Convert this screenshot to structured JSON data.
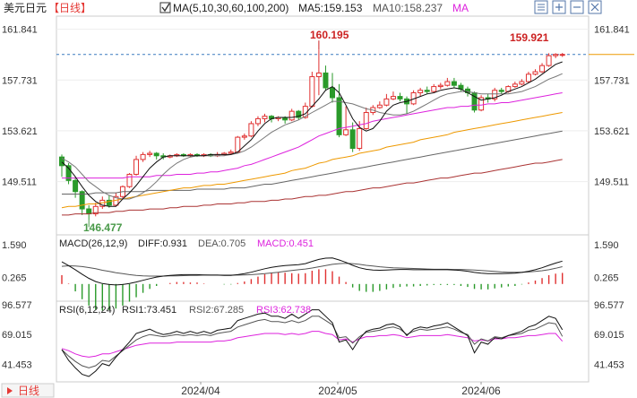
{
  "header": {
    "symbol": "美元日元",
    "period": "【日线】",
    "ma_label": "MA(5,10,30,60,100,200)",
    "ma5": "MA5:159.153",
    "ma10": "MA10:158.237",
    "ma_extra": "MA"
  },
  "toolbar": {
    "icons": [
      "grid-icon",
      "zoom-in-icon",
      "zoom-out-icon",
      "settings-icon"
    ]
  },
  "price_axis": {
    "ticks": [
      "161.841",
      "157.731",
      "153.621",
      "149.511"
    ]
  },
  "annotations": {
    "high1": "160.195",
    "high2": "159.921",
    "low": "146.477"
  },
  "macd": {
    "label": "MACD(26,12,9)",
    "diff": "DIFF:0.931",
    "dea": "DEA:0.705",
    "macd": "MACD:0.451",
    "ticks": [
      "1.590",
      "0.265"
    ]
  },
  "rsi": {
    "label": "RSI(6,12,24)",
    "rsi1": "RSI1:73.451",
    "rsi2": "RSI2:67.285",
    "rsi3": "RSI3:62.738",
    "ticks": [
      "96.577",
      "69.015",
      "41.453"
    ]
  },
  "xaxis": {
    "labels": [
      "2024/04",
      "2024/05",
      "2024/06"
    ],
    "period_button": "日线"
  },
  "colors": {
    "up": "#e03030",
    "down": "#2a9a2a",
    "ma5": "#111111",
    "ma10": "#777777",
    "ma30": "#dd22dd",
    "ma60": "#ee9900",
    "ma100": "#666666",
    "ma200": "#aa3333",
    "label_red": "#cc2222",
    "label_green": "#4a9a4a"
  },
  "chart_data": {
    "type": "candlestick",
    "title": "美元日元【日线】",
    "ylim": [
      145.2,
      162.9
    ],
    "xlabels": [
      "2024/04",
      "2024/05",
      "2024/06"
    ],
    "candles": [
      [
        151.5,
        150.8,
        151.7,
        149.9
      ],
      [
        150.8,
        149.6,
        151.0,
        149.3
      ],
      [
        149.6,
        148.7,
        149.9,
        148.2
      ],
      [
        148.7,
        147.3,
        148.8,
        146.8
      ],
      [
        147.3,
        146.9,
        147.6,
        146.4
      ],
      [
        146.9,
        147.5,
        147.8,
        146.7
      ],
      [
        147.5,
        148.0,
        148.3,
        147.3
      ],
      [
        148.0,
        147.6,
        148.4,
        147.4
      ],
      [
        147.6,
        148.3,
        148.6,
        147.5
      ],
      [
        148.3,
        149.1,
        149.2,
        148.1
      ],
      [
        149.1,
        150.1,
        150.2,
        149.0
      ],
      [
        150.1,
        151.3,
        151.6,
        150.0
      ],
      [
        151.3,
        151.7,
        151.9,
        151.1
      ],
      [
        151.7,
        151.8,
        152.0,
        151.5
      ],
      [
        151.8,
        151.6,
        151.9,
        151.3
      ],
      [
        151.6,
        151.5,
        151.8,
        151.3
      ],
      [
        151.5,
        151.6,
        151.7,
        151.4
      ],
      [
        151.6,
        151.7,
        151.8,
        151.5
      ],
      [
        151.7,
        151.6,
        151.8,
        151.5
      ],
      [
        151.6,
        151.7,
        151.8,
        151.5
      ],
      [
        151.7,
        151.6,
        151.8,
        151.5
      ],
      [
        151.6,
        151.7,
        151.8,
        151.5
      ],
      [
        151.7,
        151.6,
        151.8,
        151.5
      ],
      [
        151.6,
        151.7,
        151.9,
        151.5
      ],
      [
        151.7,
        151.8,
        151.9,
        151.6
      ],
      [
        151.8,
        151.9,
        152.1,
        151.7
      ],
      [
        151.9,
        153.1,
        153.2,
        151.8
      ],
      [
        153.1,
        153.2,
        153.4,
        152.9
      ],
      [
        153.2,
        154.2,
        154.4,
        153.1
      ],
      [
        154.2,
        154.6,
        154.8,
        154.0
      ],
      [
        154.6,
        154.8,
        155.0,
        154.3
      ],
      [
        154.8,
        154.6,
        154.9,
        154.3
      ],
      [
        154.6,
        154.7,
        154.8,
        154.4
      ],
      [
        154.7,
        154.5,
        154.8,
        154.2
      ],
      [
        154.5,
        155.2,
        155.4,
        154.4
      ],
      [
        155.2,
        154.7,
        155.3,
        154.5
      ],
      [
        154.7,
        155.6,
        155.9,
        154.6
      ],
      [
        155.6,
        158.0,
        158.4,
        155.5
      ],
      [
        158.0,
        158.3,
        160.2,
        156.5
      ],
      [
        158.3,
        157.1,
        158.9,
        156.9
      ],
      [
        157.1,
        156.3,
        158.3,
        155.9
      ],
      [
        156.3,
        153.3,
        157.4,
        153.1
      ],
      [
        153.3,
        153.7,
        155.6,
        153.2
      ],
      [
        153.7,
        152.2,
        154.3,
        151.9
      ],
      [
        152.2,
        153.8,
        154.4,
        152.0
      ],
      [
        153.8,
        155.1,
        155.5,
        153.7
      ],
      [
        155.1,
        155.5,
        155.7,
        154.9
      ],
      [
        155.5,
        155.7,
        156.0,
        155.4
      ],
      [
        155.7,
        156.2,
        156.6,
        155.6
      ],
      [
        156.2,
        156.4,
        156.8,
        156.1
      ],
      [
        156.4,
        156.2,
        156.7,
        156.0
      ],
      [
        156.2,
        155.8,
        156.4,
        155.0
      ],
      [
        155.8,
        156.7,
        156.9,
        155.7
      ],
      [
        156.7,
        156.9,
        157.1,
        156.4
      ],
      [
        156.9,
        156.8,
        157.2,
        156.6
      ],
      [
        156.8,
        157.2,
        157.4,
        156.7
      ],
      [
        157.2,
        157.3,
        157.5,
        157.0
      ],
      [
        157.3,
        157.6,
        157.9,
        157.2
      ],
      [
        157.6,
        157.3,
        157.9,
        157.1
      ],
      [
        157.3,
        157.0,
        157.5,
        156.8
      ],
      [
        157.0,
        156.7,
        157.2,
        156.4
      ],
      [
        156.7,
        155.3,
        156.8,
        155.1
      ],
      [
        155.3,
        156.3,
        156.5,
        155.2
      ],
      [
        156.3,
        156.2,
        156.6,
        155.9
      ],
      [
        156.2,
        156.9,
        157.1,
        156.0
      ],
      [
        156.9,
        156.8,
        157.1,
        156.6
      ],
      [
        156.8,
        157.2,
        157.3,
        156.7
      ],
      [
        157.2,
        157.4,
        157.6,
        157.1
      ],
      [
        157.4,
        157.6,
        157.8,
        157.3
      ],
      [
        157.6,
        158.2,
        158.4,
        157.5
      ],
      [
        158.2,
        158.4,
        158.6,
        158.1
      ],
      [
        158.4,
        158.9,
        159.1,
        158.3
      ],
      [
        158.9,
        159.7,
        159.9,
        158.8
      ],
      [
        159.7,
        159.8,
        159.9,
        159.5
      ],
      [
        159.8,
        159.8,
        159.92,
        159.6
      ]
    ],
    "ma5": [
      151.1,
      150.6,
      149.9,
      149.1,
      148.4,
      147.9,
      147.6,
      147.5,
      147.5,
      148.1,
      148.6,
      149.2,
      149.9,
      150.6,
      151.1,
      151.5,
      151.6,
      151.6,
      151.6,
      151.6,
      151.6,
      151.6,
      151.7,
      151.7,
      151.7,
      151.7,
      151.9,
      152.4,
      152.9,
      153.6,
      154.2,
      154.6,
      154.7,
      154.7,
      154.7,
      154.8,
      155.0,
      155.6,
      156.2,
      156.9,
      157.2,
      156.7,
      155.7,
      154.6,
      153.9,
      153.6,
      153.8,
      154.4,
      155.2,
      155.7,
      155.9,
      156.0,
      156.2,
      156.4,
      156.6,
      156.7,
      156.9,
      157.0,
      157.1,
      157.0,
      156.7,
      156.4,
      156.1,
      156.2,
      156.3,
      156.5,
      156.8,
      157.0,
      157.2,
      157.5,
      157.8,
      158.2,
      158.6,
      159.0,
      159.2
    ],
    "ma10": [
      151.4,
      151.1,
      150.7,
      150.1,
      149.5,
      149.1,
      148.7,
      148.4,
      148.2,
      148.1,
      148.1,
      148.3,
      148.6,
      149.0,
      149.5,
      150.1,
      150.6,
      151.0,
      151.3,
      151.5,
      151.6,
      151.6,
      151.6,
      151.6,
      151.6,
      151.7,
      151.8,
      152.0,
      152.3,
      152.7,
      153.1,
      153.5,
      153.8,
      154.1,
      154.3,
      154.5,
      154.8,
      155.1,
      155.4,
      155.7,
      156.0,
      156.0,
      155.9,
      155.8,
      155.6,
      155.4,
      155.3,
      155.1,
      155.0,
      154.9,
      154.9,
      155.0,
      155.2,
      155.5,
      155.8,
      156.1,
      156.4,
      156.6,
      156.7,
      156.8,
      156.8,
      156.7,
      156.6,
      156.6,
      156.6,
      156.6,
      156.6,
      156.7,
      156.8,
      157.0,
      157.2,
      157.5,
      157.8,
      158.0,
      158.24
    ],
    "ma30": [
      149.8,
      149.8,
      149.8,
      149.8,
      149.8,
      149.8,
      149.8,
      149.8,
      149.8,
      149.8,
      149.9,
      149.9,
      149.9,
      149.9,
      150.0,
      150.0,
      150.0,
      150.1,
      150.1,
      150.1,
      150.2,
      150.2,
      150.3,
      150.3,
      150.4,
      150.5,
      150.6,
      150.8,
      150.9,
      151.1,
      151.3,
      151.5,
      151.7,
      151.9,
      152.1,
      152.3,
      152.6,
      152.9,
      153.2,
      153.4,
      153.6,
      153.8,
      153.9,
      154.0,
      154.1,
      154.2,
      154.4,
      154.5,
      154.6,
      154.7,
      154.8,
      154.9,
      155.0,
      155.1,
      155.2,
      155.3,
      155.4,
      155.5,
      155.5,
      155.6,
      155.6,
      155.7,
      155.7,
      155.8,
      155.8,
      155.9,
      155.9,
      156.0,
      156.1,
      156.2,
      156.3,
      156.4,
      156.5,
      156.6,
      156.7
    ],
    "ma60": [
      147.4,
      147.5,
      147.5,
      147.6,
      147.7,
      147.7,
      147.8,
      147.9,
      148.0,
      148.1,
      148.2,
      148.3,
      148.4,
      148.5,
      148.6,
      148.7,
      148.8,
      148.9,
      149.0,
      149.0,
      149.1,
      149.2,
      149.2,
      149.3,
      149.3,
      149.4,
      149.5,
      149.6,
      149.7,
      149.8,
      149.9,
      150.0,
      150.1,
      150.2,
      150.4,
      150.5,
      150.6,
      150.8,
      151.0,
      151.1,
      151.3,
      151.4,
      151.5,
      151.6,
      151.8,
      151.9,
      152.0,
      152.1,
      152.3,
      152.4,
      152.5,
      152.6,
      152.7,
      152.9,
      153.0,
      153.1,
      153.2,
      153.3,
      153.5,
      153.6,
      153.7,
      153.8,
      153.9,
      154.0,
      154.1,
      154.2,
      154.3,
      154.4,
      154.5,
      154.6,
      154.7,
      154.8,
      154.9,
      155.0,
      155.1
    ],
    "ma100": [
      148.5,
      148.5,
      148.5,
      148.5,
      148.5,
      148.6,
      148.6,
      148.6,
      148.6,
      148.7,
      148.7,
      148.7,
      148.7,
      148.8,
      148.8,
      148.8,
      148.8,
      148.8,
      148.8,
      148.8,
      148.9,
      148.9,
      148.9,
      148.9,
      148.9,
      149.0,
      149.0,
      149.0,
      149.1,
      149.2,
      149.3,
      149.3,
      149.4,
      149.5,
      149.6,
      149.7,
      149.8,
      149.9,
      150.0,
      150.1,
      150.2,
      150.3,
      150.4,
      150.5,
      150.6,
      150.7,
      150.8,
      150.9,
      151.0,
      151.1,
      151.2,
      151.3,
      151.4,
      151.5,
      151.6,
      151.7,
      151.8,
      151.9,
      152.0,
      152.1,
      152.2,
      152.3,
      152.4,
      152.5,
      152.6,
      152.7,
      152.8,
      152.9,
      153.0,
      153.1,
      153.2,
      153.3,
      153.4,
      153.5,
      153.6
    ],
    "ma200": [
      146.8,
      146.8,
      146.9,
      146.9,
      146.9,
      147.0,
      147.0,
      147.0,
      147.1,
      147.1,
      147.2,
      147.2,
      147.2,
      147.3,
      147.3,
      147.3,
      147.4,
      147.4,
      147.5,
      147.5,
      147.5,
      147.6,
      147.6,
      147.7,
      147.7,
      147.7,
      147.8,
      147.8,
      147.9,
      147.9,
      147.9,
      148.0,
      148.0,
      148.1,
      148.1,
      148.2,
      148.3,
      148.3,
      148.4,
      148.4,
      148.5,
      148.6,
      148.7,
      148.7,
      148.8,
      148.9,
      149.0,
      149.0,
      149.1,
      149.2,
      149.3,
      149.4,
      149.4,
      149.5,
      149.6,
      149.7,
      149.8,
      149.8,
      149.9,
      150.0,
      150.1,
      150.2,
      150.2,
      150.3,
      150.4,
      150.5,
      150.6,
      150.7,
      150.8,
      150.9,
      151.0,
      151.0,
      151.1,
      151.2,
      151.3
    ],
    "macd_ylim": [
      -0.7,
      2.0
    ],
    "diff": [
      0.9,
      0.75,
      0.58,
      0.4,
      0.23,
      0.1,
      0.02,
      -0.02,
      -0.04,
      -0.02,
      0.02,
      0.08,
      0.15,
      0.22,
      0.28,
      0.32,
      0.35,
      0.37,
      0.38,
      0.38,
      0.38,
      0.37,
      0.36,
      0.36,
      0.35,
      0.35,
      0.38,
      0.42,
      0.48,
      0.55,
      0.62,
      0.68,
      0.72,
      0.75,
      0.77,
      0.79,
      0.83,
      0.92,
      1.0,
      1.05,
      1.06,
      0.98,
      0.88,
      0.76,
      0.66,
      0.6,
      0.57,
      0.56,
      0.57,
      0.58,
      0.59,
      0.59,
      0.58,
      0.58,
      0.58,
      0.58,
      0.58,
      0.58,
      0.57,
      0.55,
      0.52,
      0.47,
      0.44,
      0.42,
      0.42,
      0.42,
      0.43,
      0.44,
      0.47,
      0.52,
      0.58,
      0.66,
      0.76,
      0.85,
      0.931
    ],
    "dea": [
      0.72,
      0.74,
      0.73,
      0.71,
      0.67,
      0.62,
      0.56,
      0.51,
      0.46,
      0.42,
      0.38,
      0.35,
      0.33,
      0.32,
      0.32,
      0.32,
      0.33,
      0.33,
      0.34,
      0.35,
      0.35,
      0.36,
      0.36,
      0.36,
      0.36,
      0.36,
      0.36,
      0.37,
      0.38,
      0.4,
      0.42,
      0.45,
      0.48,
      0.52,
      0.55,
      0.58,
      0.61,
      0.65,
      0.7,
      0.75,
      0.8,
      0.83,
      0.84,
      0.83,
      0.8,
      0.76,
      0.73,
      0.7,
      0.68,
      0.66,
      0.65,
      0.64,
      0.63,
      0.62,
      0.61,
      0.6,
      0.6,
      0.6,
      0.59,
      0.59,
      0.58,
      0.57,
      0.55,
      0.53,
      0.51,
      0.49,
      0.48,
      0.48,
      0.48,
      0.49,
      0.51,
      0.54,
      0.58,
      0.64,
      0.705
    ],
    "rsi_ylim": [
      25,
      100
    ],
    "rsi1": [
      55,
      45,
      38,
      32,
      30,
      35,
      42,
      40,
      48,
      55,
      62,
      70,
      72,
      74,
      71,
      69,
      70,
      72,
      70,
      72,
      70,
      72,
      70,
      73,
      74,
      75,
      82,
      84,
      86,
      88,
      89,
      86,
      86,
      84,
      88,
      84,
      88,
      92,
      92,
      86,
      80,
      62,
      64,
      55,
      65,
      72,
      74,
      75,
      78,
      79,
      76,
      68,
      74,
      76,
      75,
      77,
      78,
      80,
      76,
      72,
      68,
      52,
      62,
      60,
      66,
      65,
      68,
      70,
      72,
      76,
      78,
      82,
      86,
      84,
      73.451
    ],
    "rsi2": [
      55,
      49,
      44,
      40,
      38,
      40,
      45,
      44,
      49,
      54,
      59,
      64,
      67,
      69,
      68,
      67,
      68,
      69,
      68,
      69,
      68,
      69,
      68,
      70,
      71,
      72,
      76,
      78,
      80,
      82,
      83,
      81,
      81,
      80,
      82,
      80,
      82,
      86,
      86,
      82,
      78,
      66,
      67,
      61,
      67,
      71,
      72,
      73,
      75,
      76,
      74,
      69,
      72,
      74,
      73,
      74,
      75,
      76,
      74,
      71,
      69,
      60,
      65,
      63,
      67,
      66,
      68,
      69,
      70,
      73,
      74,
      77,
      80,
      79,
      67.285
    ],
    "rsi3": [
      56,
      54,
      51,
      49,
      48,
      49,
      51,
      51,
      53,
      55,
      57,
      59,
      60,
      61,
      61,
      61,
      61,
      62,
      62,
      62,
      62,
      62,
      62,
      63,
      63,
      64,
      66,
      67,
      68,
      69,
      70,
      70,
      70,
      69,
      70,
      69,
      70,
      72,
      72,
      70,
      69,
      64,
      65,
      62,
      65,
      67,
      67,
      68,
      68,
      69,
      68,
      66,
      67,
      68,
      68,
      68,
      68,
      69,
      68,
      67,
      66,
      63,
      64,
      63,
      65,
      65,
      66,
      66,
      67,
      68,
      68,
      69,
      70,
      70,
      62.738
    ]
  }
}
